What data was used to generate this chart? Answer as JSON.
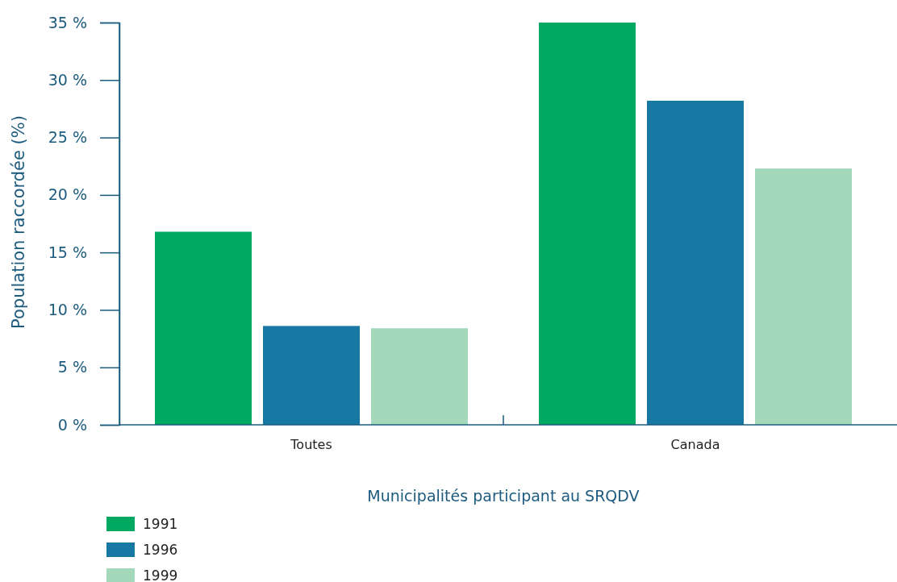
{
  "chart_data": {
    "type": "bar",
    "xlabel": "Municipalités participant au SRQDV",
    "ylabel": "Population raccordée (%)",
    "categories": [
      "Toutes",
      "Canada"
    ],
    "series": [
      {
        "name": "1991",
        "color": "#00a862",
        "values": [
          16.8,
          35.0
        ]
      },
      {
        "name": "1996",
        "color": "#1779a3",
        "values": [
          8.6,
          28.2
        ]
      },
      {
        "name": "1999",
        "color": "#a3d9ba",
        "values": [
          8.4,
          22.3
        ]
      }
    ],
    "ylim": [
      0,
      35
    ],
    "yticks": [
      {
        "value": 0,
        "label": "0 %"
      },
      {
        "value": 5,
        "label": "5 %"
      },
      {
        "value": 10,
        "label": "10 %"
      },
      {
        "value": 15,
        "label": "15 %"
      },
      {
        "value": 20,
        "label": "20 %"
      },
      {
        "value": 25,
        "label": "25 %"
      },
      {
        "value": 30,
        "label": "30 %"
      },
      {
        "value": 35,
        "label": "35 %"
      }
    ],
    "grid": false,
    "legend": "bottom left"
  }
}
